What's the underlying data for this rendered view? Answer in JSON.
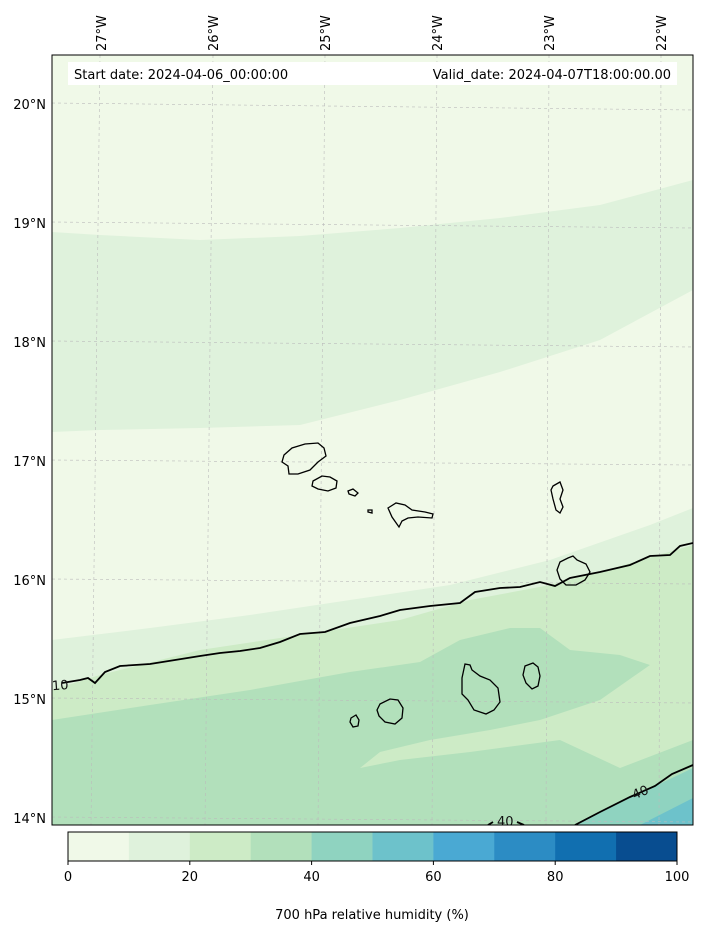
{
  "header": {
    "start_date": "Start date: 2024-04-06_00:00:00",
    "valid_date": "Valid_date: 2024-04-07T18:00:00.00"
  },
  "colors": {
    "bins": [
      "#f0f9e8",
      "#dff2dc",
      "#cdebc6",
      "#b2e0bb",
      "#8fd3c0",
      "#6dc2cb",
      "#4aa9d3",
      "#2c8cc4",
      "#116fb0",
      "#084d90"
    ],
    "coastline": "#000000",
    "contour": "#000000",
    "grid": "#bbbbbb"
  },
  "chart_data": {
    "type": "map",
    "variable": "700 hPa relative humidity (%)",
    "lon_range": [
      -27.35,
      -21.3
    ],
    "lat_range": [
      13.95,
      20.4
    ],
    "lon_ticks": [
      {
        "value": -27,
        "label": "27°W"
      },
      {
        "value": -26,
        "label": "26°W"
      },
      {
        "value": -25,
        "label": "25°W"
      },
      {
        "value": -24,
        "label": "24°W"
      },
      {
        "value": -23,
        "label": "23°W"
      },
      {
        "value": -22,
        "label": "22°W"
      }
    ],
    "lat_ticks": [
      {
        "value": 20,
        "label": "20°N"
      },
      {
        "value": 19,
        "label": "19°N"
      },
      {
        "value": 18,
        "label": "18°N"
      },
      {
        "value": 17,
        "label": "17°N"
      },
      {
        "value": 16,
        "label": "16°N"
      },
      {
        "value": 15,
        "label": "15°N"
      },
      {
        "value": 14,
        "label": "14°N"
      }
    ],
    "gridlines": true,
    "colorbar": {
      "min": 0,
      "max": 100,
      "step": 10,
      "ticks": [
        {
          "value": 0,
          "label": "0"
        },
        {
          "value": 20,
          "label": "20"
        },
        {
          "value": 40,
          "label": "40"
        },
        {
          "value": 60,
          "label": "60"
        },
        {
          "value": 80,
          "label": "80"
        },
        {
          "value": 100,
          "label": "100"
        }
      ],
      "orientation": "horizontal",
      "placement": "bottom"
    },
    "contour_labels": [
      {
        "text": "10"
      },
      {
        "text": "40"
      },
      {
        "text": "40"
      }
    ]
  }
}
